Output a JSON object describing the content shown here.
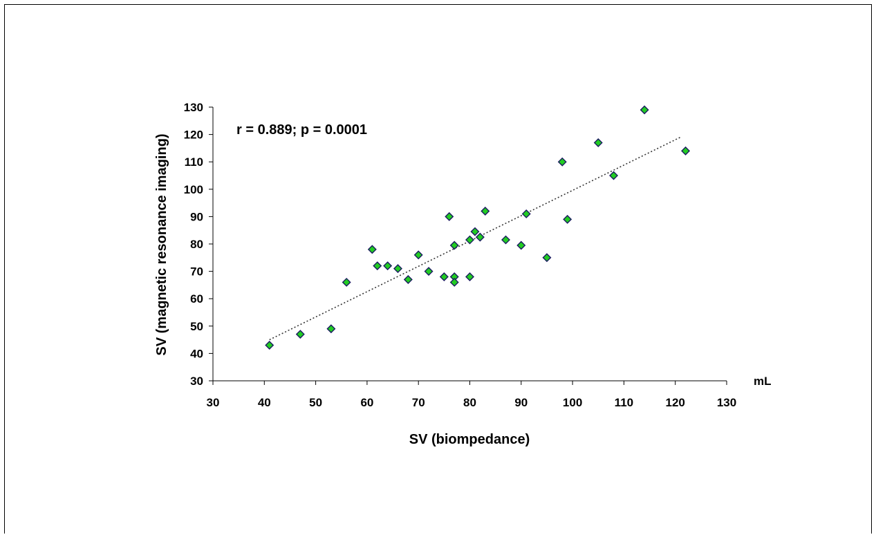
{
  "chart_data": {
    "type": "scatter",
    "title": "",
    "annotation": "r = 0.889; p = 0.0001",
    "xlabel": "SV (biompedance)",
    "ylabel": "SV (magnetic resonance imaging)",
    "unit_label": "mL",
    "xlim": [
      30,
      130
    ],
    "ylim": [
      30,
      130
    ],
    "xticks": [
      30,
      40,
      50,
      60,
      70,
      80,
      90,
      100,
      110,
      120,
      130
    ],
    "yticks": [
      30,
      40,
      50,
      60,
      70,
      80,
      90,
      100,
      110,
      120,
      130
    ],
    "grid": false,
    "marker": {
      "shape": "diamond",
      "fill": "#22cc22",
      "stroke": "#1a1a60"
    },
    "trendline": {
      "style": "dotted",
      "color": "#333333",
      "x": [
        41,
        121
      ],
      "y": [
        45,
        119
      ]
    },
    "points": [
      {
        "x": 41,
        "y": 43
      },
      {
        "x": 47,
        "y": 47
      },
      {
        "x": 53,
        "y": 49
      },
      {
        "x": 56,
        "y": 66
      },
      {
        "x": 61,
        "y": 78
      },
      {
        "x": 62,
        "y": 72
      },
      {
        "x": 64,
        "y": 72
      },
      {
        "x": 66,
        "y": 71
      },
      {
        "x": 68,
        "y": 67
      },
      {
        "x": 70,
        "y": 76
      },
      {
        "x": 72,
        "y": 70
      },
      {
        "x": 75,
        "y": 68
      },
      {
        "x": 76,
        "y": 90
      },
      {
        "x": 77,
        "y": 68
      },
      {
        "x": 77,
        "y": 66
      },
      {
        "x": 77,
        "y": 79.5
      },
      {
        "x": 80,
        "y": 68
      },
      {
        "x": 80,
        "y": 81.5
      },
      {
        "x": 81,
        "y": 84.5
      },
      {
        "x": 82,
        "y": 82.5
      },
      {
        "x": 83,
        "y": 92
      },
      {
        "x": 87,
        "y": 81.5
      },
      {
        "x": 90,
        "y": 79.5
      },
      {
        "x": 91,
        "y": 91
      },
      {
        "x": 95,
        "y": 75
      },
      {
        "x": 98,
        "y": 110
      },
      {
        "x": 99,
        "y": 89
      },
      {
        "x": 105,
        "y": 117
      },
      {
        "x": 108,
        "y": 105
      },
      {
        "x": 114,
        "y": 129
      },
      {
        "x": 122,
        "y": 114
      }
    ]
  }
}
